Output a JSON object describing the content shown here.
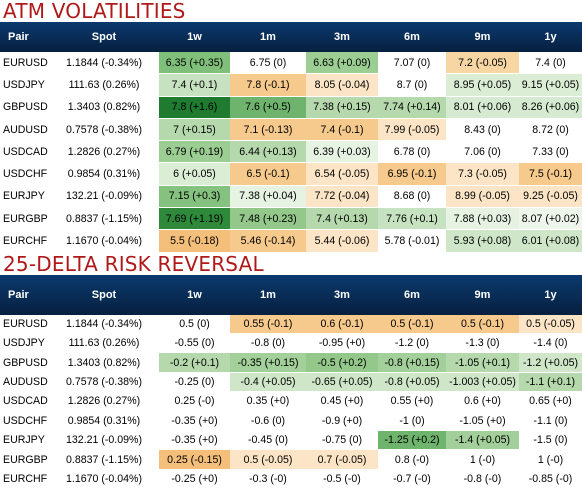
{
  "sections": [
    {
      "title": "ATM VOLATILITIES",
      "headers": [
        "Pair",
        "Spot",
        "1w",
        "1m",
        "3m",
        "6m",
        "9m",
        "1y"
      ],
      "rows": [
        {
          "pair": "EURUSD",
          "spot": "1.1844 (-0.34%)",
          "cells": [
            {
              "text": "6.35 (+0.35)",
              "color": "#7fbf7a"
            },
            {
              "text": "6.75 (0)",
              "color": "#ffffff"
            },
            {
              "text": "6.63 (+0.09)",
              "color": "#9ccd93"
            },
            {
              "text": "7.07 (0)",
              "color": "#ffffff"
            },
            {
              "text": "7.2 (-0.05)",
              "color": "#f7d6a4"
            },
            {
              "text": "7.4 (0)",
              "color": "#ffffff"
            }
          ]
        },
        {
          "pair": "USDJPY",
          "spot": "111.63 (0.26%)",
          "cells": [
            {
              "text": "7.4 (+0.1)",
              "color": "#c7e2c0"
            },
            {
              "text": "7.8 (-0.1)",
              "color": "#f6c98c"
            },
            {
              "text": "8.05 (-0.04)",
              "color": "#fbe5c6"
            },
            {
              "text": "8.7 (0)",
              "color": "#ffffff"
            },
            {
              "text": "8.95 (+0.05)",
              "color": "#dcedd6"
            },
            {
              "text": "9.15 (+0.05)",
              "color": "#dcedd6"
            }
          ]
        },
        {
          "pair": "GBPUSD",
          "spot": "1.3403 (0.82%)",
          "cells": [
            {
              "text": "7.8 (+1.6)",
              "color": "#1e7b2f"
            },
            {
              "text": "7.6 (+0.5)",
              "color": "#6fb46c"
            },
            {
              "text": "7.38 (+0.15)",
              "color": "#b5d9ad"
            },
            {
              "text": "7.74 (+0.14)",
              "color": "#b5d9ad"
            },
            {
              "text": "8.01 (+0.06)",
              "color": "#d5ead0"
            },
            {
              "text": "8.26 (+0.06)",
              "color": "#d5ead0"
            }
          ]
        },
        {
          "pair": "AUDUSD",
          "spot": "0.7578 (-0.38%)",
          "cells": [
            {
              "text": "7 (+0.15)",
              "color": "#b5d9ad"
            },
            {
              "text": "7.1 (-0.13)",
              "color": "#f6c98c"
            },
            {
              "text": "7.4 (-0.1)",
              "color": "#f6c98c"
            },
            {
              "text": "7.99 (-0.05)",
              "color": "#fbe5c6"
            },
            {
              "text": "8.43 (0)",
              "color": "#ffffff"
            },
            {
              "text": "8.72 (0)",
              "color": "#ffffff"
            }
          ]
        },
        {
          "pair": "USDCAD",
          "spot": "1.2826 (0.27%)",
          "cells": [
            {
              "text": "6.79 (+0.19)",
              "color": "#9ccd93"
            },
            {
              "text": "6.44 (+0.13)",
              "color": "#b5d9ad"
            },
            {
              "text": "6.39 (+0.03)",
              "color": "#e6f2e2"
            },
            {
              "text": "6.78 (0)",
              "color": "#ffffff"
            },
            {
              "text": "7.06 (0)",
              "color": "#ffffff"
            },
            {
              "text": "7.33 (0)",
              "color": "#ffffff"
            }
          ]
        },
        {
          "pair": "USDCHF",
          "spot": "0.9854 (0.31%)",
          "cells": [
            {
              "text": "6 (+0.05)",
              "color": "#dcedd6"
            },
            {
              "text": "6.5 (-0.1)",
              "color": "#f6c98c"
            },
            {
              "text": "6.54 (-0.05)",
              "color": "#fbe5c6"
            },
            {
              "text": "6.95 (-0.1)",
              "color": "#f6c98c"
            },
            {
              "text": "7.3 (-0.05)",
              "color": "#fbe5c6"
            },
            {
              "text": "7.5 (-0.1)",
              "color": "#f6c98c"
            }
          ]
        },
        {
          "pair": "EURJPY",
          "spot": "132.21 (-0.09%)",
          "cells": [
            {
              "text": "7.15 (+0.3)",
              "color": "#86c27f"
            },
            {
              "text": "7.38 (+0.04)",
              "color": "#e6f2e2"
            },
            {
              "text": "7.72 (-0.04)",
              "color": "#fbe5c6"
            },
            {
              "text": "8.68 (0)",
              "color": "#ffffff"
            },
            {
              "text": "8.99 (-0.05)",
              "color": "#fbe5c6"
            },
            {
              "text": "9.25 (-0.05)",
              "color": "#fbe5c6"
            }
          ]
        },
        {
          "pair": "EURGBP",
          "spot": "0.8837 (-1.15%)",
          "cells": [
            {
              "text": "7.69 (+1.19)",
              "color": "#2e8a3a"
            },
            {
              "text": "7.48 (+0.23)",
              "color": "#93c88a"
            },
            {
              "text": "7.4 (+0.13)",
              "color": "#b5d9ad"
            },
            {
              "text": "7.76 (+0.1)",
              "color": "#c7e2c0"
            },
            {
              "text": "7.88 (+0.03)",
              "color": "#e6f2e2"
            },
            {
              "text": "8.07 (+0.02)",
              "color": "#eef6ec"
            }
          ]
        },
        {
          "pair": "EURCHF",
          "spot": "1.1670 (-0.04%)",
          "cells": [
            {
              "text": "5.5 (-0.18)",
              "color": "#f3bf7a"
            },
            {
              "text": "5.46 (-0.14)",
              "color": "#f6c98c"
            },
            {
              "text": "5.44 (-0.06)",
              "color": "#fbe5c6"
            },
            {
              "text": "5.78 (-0.01)",
              "color": "#ffffff"
            },
            {
              "text": "5.93 (+0.08)",
              "color": "#cfe7c8"
            },
            {
              "text": "6.01 (+0.08)",
              "color": "#cfe7c8"
            }
          ]
        }
      ]
    },
    {
      "title": "25-DELTA RISK REVERSAL",
      "headers": [
        "Pair",
        "Spot",
        "1w",
        "1m",
        "3m",
        "6m",
        "9m",
        "1y"
      ],
      "rows": [
        {
          "pair": "EURUSD",
          "spot": "1.1844 (-0.34%)",
          "cells": [
            {
              "text": "0.5 (0)",
              "color": "#ffffff"
            },
            {
              "text": "0.55 (-0.1)",
              "color": "#f6c98c"
            },
            {
              "text": "0.6 (-0.1)",
              "color": "#f6c98c"
            },
            {
              "text": "0.5 (-0.1)",
              "color": "#f6c98c"
            },
            {
              "text": "0.5 (-0.1)",
              "color": "#f6c98c"
            },
            {
              "text": "0.5 (-0.05)",
              "color": "#fbe5c6"
            }
          ]
        },
        {
          "pair": "USDJPY",
          "spot": "111.63 (0.26%)",
          "cells": [
            {
              "text": "-0.55 (0)",
              "color": "#ffffff"
            },
            {
              "text": "-0.8 (0)",
              "color": "#ffffff"
            },
            {
              "text": "-0.95 (+0)",
              "color": "#ffffff"
            },
            {
              "text": "-1.2 (0)",
              "color": "#ffffff"
            },
            {
              "text": "-1.3 (0)",
              "color": "#ffffff"
            },
            {
              "text": "-1.4 (0)",
              "color": "#ffffff"
            }
          ]
        },
        {
          "pair": "GBPUSD",
          "spot": "1.3403 (0.82%)",
          "cells": [
            {
              "text": "-0.2 (+0.1)",
              "color": "#b5d9ad"
            },
            {
              "text": "-0.35 (+0.15)",
              "color": "#a3d09a"
            },
            {
              "text": "-0.5 (+0.2)",
              "color": "#93c88a"
            },
            {
              "text": "-0.8 (+0.15)",
              "color": "#a3d09a"
            },
            {
              "text": "-1.05 (+0.1)",
              "color": "#b5d9ad"
            },
            {
              "text": "-1.2 (+0.05)",
              "color": "#cfe7c8"
            }
          ]
        },
        {
          "pair": "AUDUSD",
          "spot": "0.7578 (-0.38%)",
          "cells": [
            {
              "text": "-0.25 (0)",
              "color": "#ffffff"
            },
            {
              "text": "-0.4 (+0.05)",
              "color": "#cfe7c8"
            },
            {
              "text": "-0.65 (+0.05)",
              "color": "#cfe7c8"
            },
            {
              "text": "-0.8 (+0.05)",
              "color": "#cfe7c8"
            },
            {
              "text": "-1.003 (+0.05)",
              "color": "#cfe7c8"
            },
            {
              "text": "-1.1 (+0.1)",
              "color": "#b5d9ad"
            }
          ]
        },
        {
          "pair": "USDCAD",
          "spot": "1.2826 (0.27%)",
          "cells": [
            {
              "text": "0.25 (-0)",
              "color": "#ffffff"
            },
            {
              "text": "0.35 (+0)",
              "color": "#ffffff"
            },
            {
              "text": "0.45 (+0)",
              "color": "#ffffff"
            },
            {
              "text": "0.55 (+0)",
              "color": "#ffffff"
            },
            {
              "text": "0.6 (+0)",
              "color": "#ffffff"
            },
            {
              "text": "0.65 (+0)",
              "color": "#ffffff"
            }
          ]
        },
        {
          "pair": "USDCHF",
          "spot": "0.9854 (0.31%)",
          "cells": [
            {
              "text": "-0.35 (+0)",
              "color": "#ffffff"
            },
            {
              "text": "-0.6 (0)",
              "color": "#ffffff"
            },
            {
              "text": "-0.9 (+0)",
              "color": "#ffffff"
            },
            {
              "text": "-1 (0)",
              "color": "#ffffff"
            },
            {
              "text": "-1.05 (+0)",
              "color": "#ffffff"
            },
            {
              "text": "-1.1 (0)",
              "color": "#ffffff"
            }
          ]
        },
        {
          "pair": "EURJPY",
          "spot": "132.21 (-0.09%)",
          "cells": [
            {
              "text": "-0.35 (+0)",
              "color": "#ffffff"
            },
            {
              "text": "-0.45 (0)",
              "color": "#ffffff"
            },
            {
              "text": "-0.75 (0)",
              "color": "#ffffff"
            },
            {
              "text": "-1.25 (+0.2)",
              "color": "#6fb46c"
            },
            {
              "text": "-1.4 (+0.05)",
              "color": "#a3d09a"
            },
            {
              "text": "-1.5 (0)",
              "color": "#ffffff"
            }
          ]
        },
        {
          "pair": "EURGBP",
          "spot": "0.8837 (-1.15%)",
          "cells": [
            {
              "text": "0.25 (-0.15)",
              "color": "#f3bf7a"
            },
            {
              "text": "0.5 (-0.05)",
              "color": "#fbe5c6"
            },
            {
              "text": "0.7 (-0.05)",
              "color": "#fbe5c6"
            },
            {
              "text": "0.8 (-0)",
              "color": "#ffffff"
            },
            {
              "text": "1 (-0)",
              "color": "#ffffff"
            },
            {
              "text": "1 (-0)",
              "color": "#ffffff"
            }
          ]
        },
        {
          "pair": "EURCHF",
          "spot": "1.1670 (-0.04%)",
          "cells": [
            {
              "text": "-0.25 (+0)",
              "color": "#ffffff"
            },
            {
              "text": "-0.3 (-0)",
              "color": "#ffffff"
            },
            {
              "text": "-0.5 (-0)",
              "color": "#ffffff"
            },
            {
              "text": "-0.7 (-0)",
              "color": "#ffffff"
            },
            {
              "text": "-0.8 (-0)",
              "color": "#ffffff"
            },
            {
              "text": "-0.85 (-0)",
              "color": "#ffffff"
            }
          ]
        }
      ]
    }
  ]
}
